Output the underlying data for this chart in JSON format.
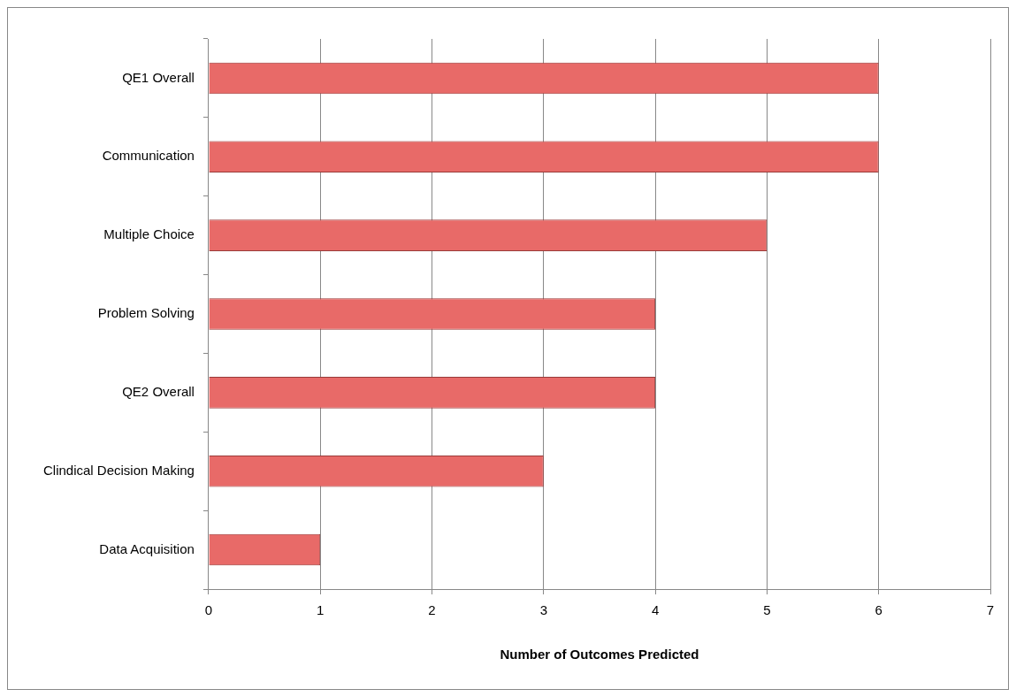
{
  "chart_data": {
    "type": "bar",
    "orientation": "horizontal",
    "xlabel": "Number of Outcomes Predicted",
    "categories": [
      "QE1 Overall",
      "Communication",
      "Multiple Choice",
      "Problem Solving",
      "QE2 Overall",
      "Clindical Decision Making",
      "Data Acquisition"
    ],
    "values": [
      6,
      6,
      5,
      4,
      4,
      3,
      1
    ],
    "color": "#e86a68",
    "xlim": [
      0,
      7
    ],
    "xticks": [
      0,
      1,
      2,
      3,
      4,
      5,
      6,
      7
    ],
    "grid": "x"
  }
}
